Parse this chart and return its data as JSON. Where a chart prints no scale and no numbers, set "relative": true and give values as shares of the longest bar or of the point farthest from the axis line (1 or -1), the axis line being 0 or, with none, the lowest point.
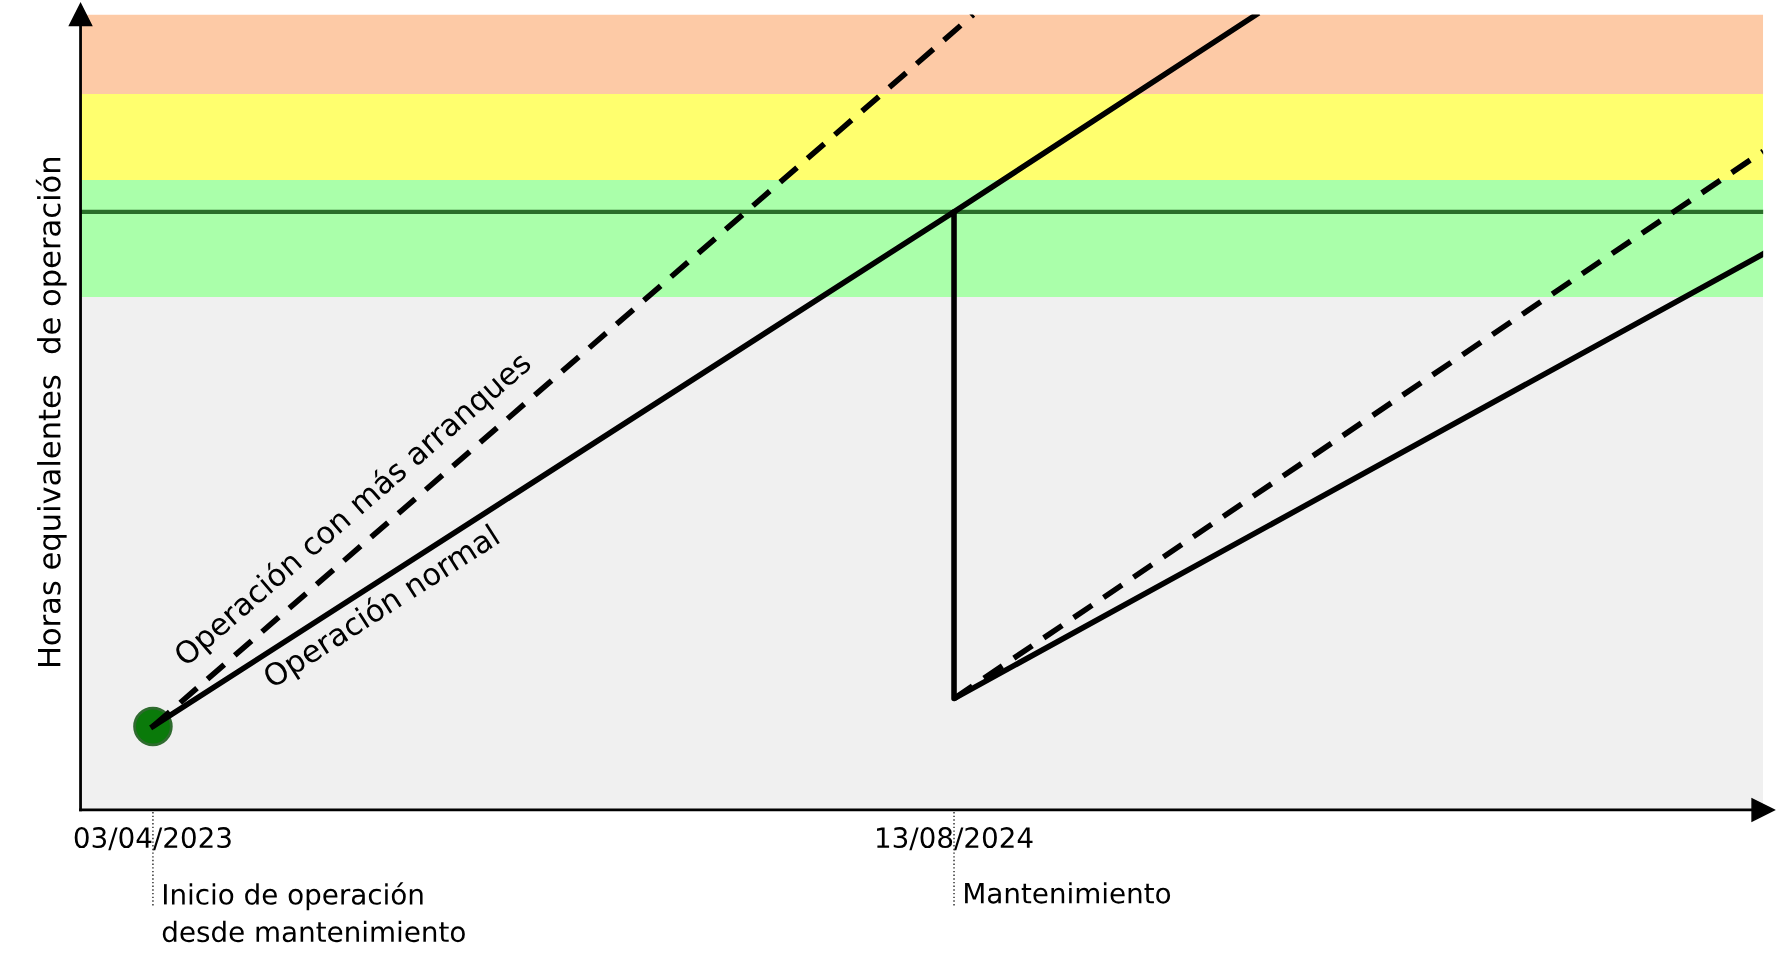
{
  "chart_data": {
    "type": "line",
    "relative": true,
    "ylabel": "Horas equivalentes  de operación",
    "xlim": [
      "2023-02-17",
      "2025-12-29"
    ],
    "xticks": [
      {
        "value": "2023-04-03",
        "label": "03/04/2023"
      },
      {
        "value": "2024-08-13",
        "label": "13/08/2024"
      }
    ],
    "annotations": [
      "Inicio de operación\ndesde mantenimiento",
      "Mantenimiento"
    ],
    "tick_labels": "x",
    "bands": [
      {
        "axis": "y",
        "from": 0,
        "to": 0.645,
        "color": "#f0f0f0"
      },
      {
        "axis": "y",
        "from": 0.645,
        "to": 0.792,
        "color": "#aaffaa"
      },
      {
        "axis": "y",
        "from": 0.792,
        "to": 0.9,
        "color": "#ffff6e"
      },
      {
        "axis": "y",
        "from": 0.9,
        "to": 1.0,
        "color": "#fdcaa6"
      }
    ],
    "ref_lines": [
      {
        "axis": "y",
        "value": 0.752,
        "color": "#2a6e2a",
        "line_style": "solid"
      }
    ],
    "series": [
      {
        "name": "Operación con más arranques",
        "color": "#000000",
        "line_style": "dashed",
        "x": [
          "2023-04-03",
          "2024-08-25"
        ],
        "values": [
          0.105,
          1.0
        ]
      },
      {
        "color": "#000000",
        "line_style": "dashed",
        "x": [
          "2024-08-13",
          "2025-12-29"
        ],
        "values": [
          0.14,
          0.828
        ]
      },
      {
        "name": "Operación normal",
        "color": "#000000",
        "line_style": "solid",
        "x": [
          "2023-04-03",
          "2024-08-13",
          "2024-08-13",
          "2025-12-29"
        ],
        "values": [
          0.105,
          0.752,
          0.14,
          0.699
        ]
      },
      {
        "color": "#000000",
        "line_style": "solid",
        "x": [
          "2024-08-13",
          "2025-02-17"
        ],
        "values": [
          0.752,
          1.0
        ]
      },
      {
        "type": "scatter",
        "color": "#0a7a0a",
        "marker": "circle",
        "x": [
          "2023-04-03"
        ],
        "values": [
          0.105
        ]
      }
    ]
  }
}
